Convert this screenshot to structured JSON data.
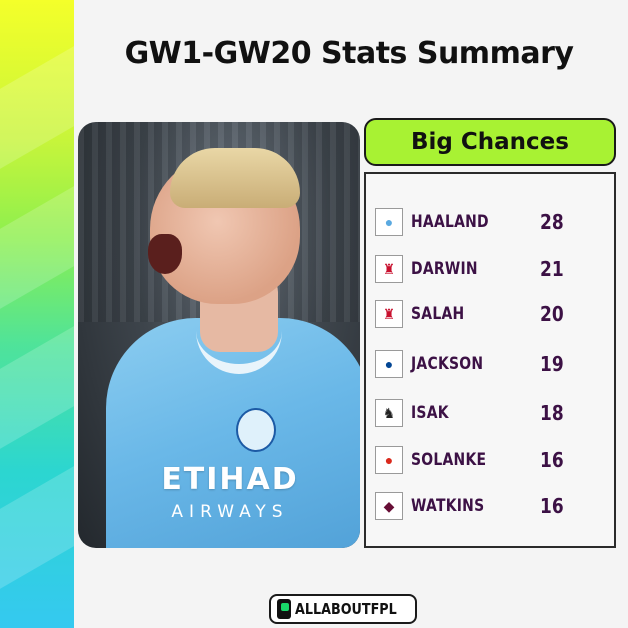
{
  "title": "GW1-GW20 Stats Summary",
  "stat_header": "Big Chances",
  "players": [
    {
      "name": "HAALAND",
      "value": "28",
      "club_icon": "man-city-crest-icon"
    },
    {
      "name": "DARWIN",
      "value": "21",
      "club_icon": "liverpool-crest-icon"
    },
    {
      "name": "SALAH",
      "value": "20",
      "club_icon": "liverpool-crest-icon"
    },
    {
      "name": "JACKSON",
      "value": "19",
      "club_icon": "chelsea-crest-icon"
    },
    {
      "name": "ISAK",
      "value": "18",
      "club_icon": "newcastle-crest-icon"
    },
    {
      "name": "SOLANKE",
      "value": "16",
      "club_icon": "bournemouth-crest-icon"
    },
    {
      "name": "WATKINS",
      "value": "16",
      "club_icon": "aston-villa-crest-icon"
    }
  ],
  "photo": {
    "sponsor_main": "ETIHAD",
    "sponsor_sub": "AIRWAYS"
  },
  "footer": {
    "brand": "ALLABOUTFPL"
  },
  "colors": {
    "header_green": "#a8f233",
    "name_purple": "#3c1145",
    "stripe_top": "#f4ff2a",
    "stripe_bottom": "#35c9f0"
  }
}
